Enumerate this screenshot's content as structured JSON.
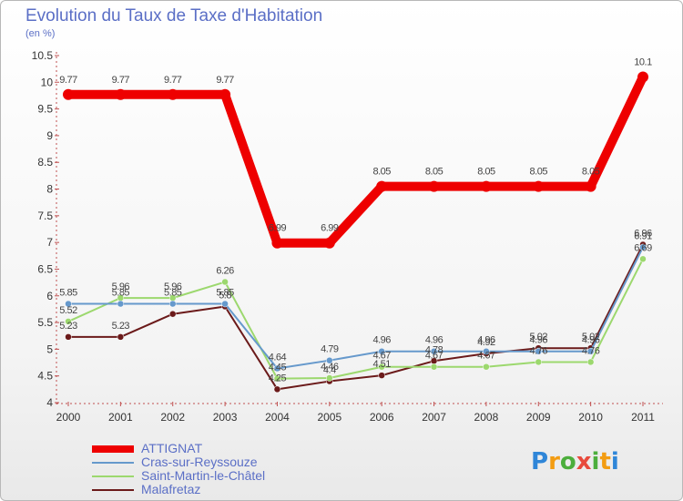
{
  "chart_data": {
    "type": "line",
    "title": "Evolution du Taux de Taxe d'Habitation",
    "subtitle": "(en %)",
    "x": [
      "2000",
      "2001",
      "2002",
      "2003",
      "2004",
      "2005",
      "2006",
      "2007",
      "2008",
      "2009",
      "2010",
      "2011"
    ],
    "y_ticks": [
      "4",
      "4.5",
      "5",
      "5.5",
      "6",
      "6.5",
      "7",
      "7.5",
      "8",
      "8.5",
      "9",
      "9.5",
      "10",
      "10.5"
    ],
    "ylim": [
      4,
      10.5
    ],
    "grid": false,
    "series": [
      {
        "name": "Malafretaz",
        "color": "#6b1a1a",
        "values": [
          5.23,
          5.23,
          5.66,
          5.8,
          4.25,
          4.4,
          4.51,
          4.78,
          4.92,
          5.02,
          5.02,
          6.96
        ],
        "labels": [
          "5.23",
          "5.23",
          "",
          "5.8",
          "4.25",
          "4.4",
          "4.51",
          "4.78",
          "4.92",
          "5.02",
          "5.02",
          "6.96"
        ]
      },
      {
        "name": "Saint-Martin-le-Châtel",
        "color": "#9cd86e",
        "values": [
          5.52,
          5.96,
          5.96,
          6.26,
          4.45,
          4.46,
          4.67,
          4.67,
          4.67,
          4.76,
          4.76,
          6.69
        ],
        "labels": [
          "5.52",
          "5.96",
          "5.96",
          "6.26",
          "4.45",
          "4.46",
          "4.67",
          "4.67",
          "4.67",
          "4.76",
          "4.76",
          "6.69"
        ]
      },
      {
        "name": "Cras-sur-Reyssouze",
        "color": "#6699cc",
        "values": [
          5.85,
          5.85,
          5.85,
          5.85,
          4.64,
          4.79,
          4.96,
          4.96,
          4.96,
          4.96,
          4.96,
          6.91
        ],
        "labels": [
          "5.85",
          "5.85",
          "5.85",
          "5.85",
          "4.64",
          "4.79",
          "4.96",
          "4.96",
          "4.96",
          "4.96",
          "4.96",
          "6.91"
        ]
      },
      {
        "name": "ATTIGNAT",
        "color": "#ee0000",
        "values": [
          9.77,
          9.77,
          9.77,
          9.77,
          6.99,
          6.99,
          8.05,
          8.05,
          8.05,
          8.05,
          8.05,
          10.1
        ],
        "labels": [
          "9.77",
          "9.77",
          "9.77",
          "9.77",
          "6.99",
          "6.99",
          "8.05",
          "8.05",
          "8.05",
          "8.05",
          "8.05",
          "10.1"
        ]
      }
    ]
  },
  "legend": [
    {
      "name": "ATTIGNAT",
      "color": "#ee0000"
    },
    {
      "name": "Cras-sur-Reyssouze",
      "color": "#6699cc"
    },
    {
      "name": "Saint-Martin-le-Châtel",
      "color": "#9cd86e"
    },
    {
      "name": "Malafretaz",
      "color": "#6b1a1a"
    }
  ],
  "logo": {
    "letters": [
      "P",
      "r",
      "o",
      "x",
      "i",
      "t",
      "i"
    ],
    "colors": [
      "#2f86d8",
      "#f39c12",
      "#4cae3c",
      "#e84a3c",
      "#4cae3c",
      "#f39c12",
      "#2f86d8"
    ]
  }
}
